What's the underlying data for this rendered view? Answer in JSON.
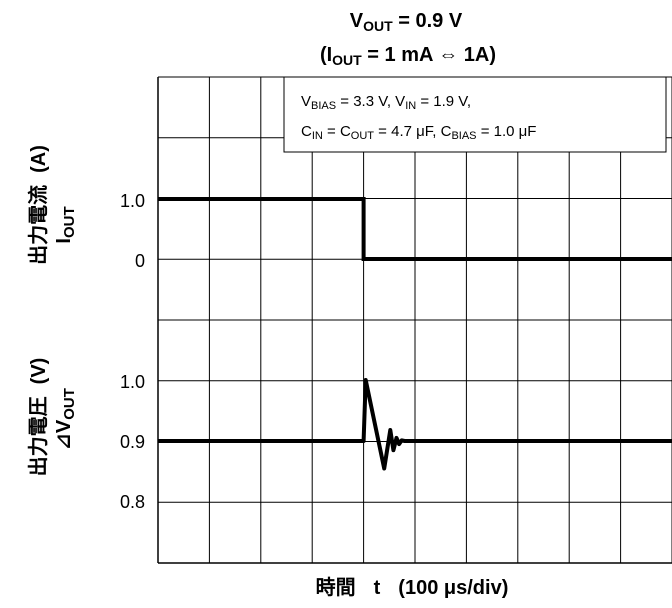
{
  "chart_data": {
    "type": "line",
    "title": {
      "line1": [
        "V",
        "OUT",
        " = 0.9 V"
      ],
      "line2": [
        "(I",
        "OUT",
        " = 1 mA  ⇔  1A)"
      ]
    },
    "annotation": {
      "line1": [
        "V",
        "BIAS",
        " = 3.3 V, V",
        "IN",
        " = 1.9 V,"
      ],
      "line2": [
        "C",
        "IN",
        " = C",
        "OUT",
        " = 4.7 μF, C",
        "BIAS",
        " = 1.0 μF"
      ]
    },
    "xlabel": [
      "時間",
      "t",
      "(100 μs/div)"
    ],
    "x_divisions": 10,
    "upper_panel": {
      "ylabel_line1": [
        "出力電流",
        "(A)"
      ],
      "ylabel_line2": [
        "I",
        "OUT"
      ],
      "tick_labels": [
        "1.0",
        "0"
      ],
      "series": [
        {
          "x": [
            0,
            4,
            4,
            10
          ],
          "y": [
            1.0,
            1.0,
            0,
            0
          ]
        }
      ]
    },
    "lower_panel": {
      "ylabel_line1": [
        "出力電圧",
        "(V)"
      ],
      "ylabel_line2": [
        "⊿V",
        "OUT"
      ],
      "tick_labels": [
        "1.0",
        "0.9",
        "0.8"
      ],
      "series": [
        {
          "x": [
            0,
            4.0,
            4.04,
            4.4,
            4.52,
            4.58,
            4.64,
            4.69,
            4.74,
            4.8,
            10
          ],
          "y": [
            0.9,
            0.9,
            1.0,
            0.855,
            0.918,
            0.885,
            0.905,
            0.895,
            0.901,
            0.9,
            0.9
          ]
        }
      ]
    },
    "grid": true
  }
}
